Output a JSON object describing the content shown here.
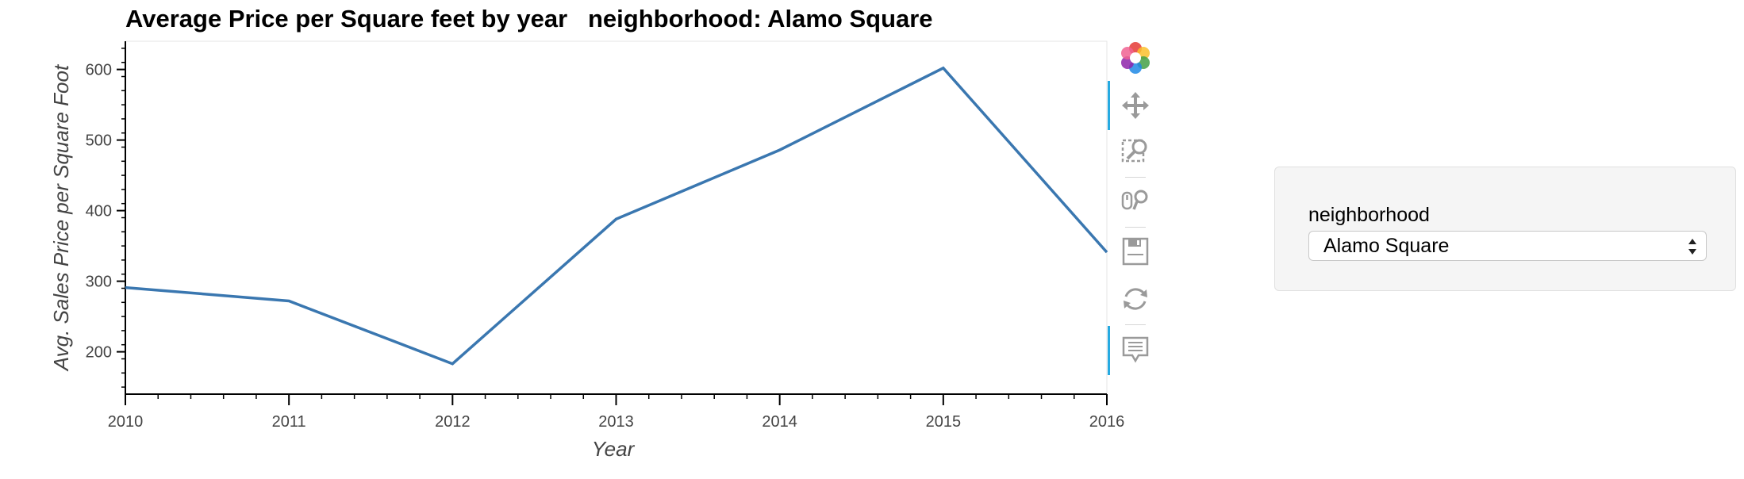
{
  "chart_data": {
    "type": "line",
    "title": "Average Price per Square feet by year   neighborhood: Alamo Square",
    "xlabel": "Year",
    "ylabel": "Avg. Sales Price per Square Foot",
    "x": [
      2010,
      2011,
      2012,
      2013,
      2014,
      2015,
      2016
    ],
    "xlim": [
      2010,
      2016
    ],
    "ylim": [
      140,
      640
    ],
    "x_ticks": [
      "2010",
      "2011",
      "2012",
      "2013",
      "2014",
      "2015",
      "2016"
    ],
    "y_ticks": [
      "200",
      "300",
      "400",
      "500",
      "600"
    ],
    "series": [
      {
        "values": [
          291,
          272,
          183,
          388,
          486,
          602,
          341
        ]
      }
    ],
    "line_color": "#3a77b0",
    "grid": false
  },
  "toolbar": {
    "tools": [
      "bokeh-logo-icon",
      "pan-icon",
      "box-zoom-icon",
      "wheel-zoom-icon",
      "save-icon",
      "reset-icon",
      "hover-icon"
    ]
  },
  "widget": {
    "label": "neighborhood",
    "selected": "Alamo Square"
  }
}
